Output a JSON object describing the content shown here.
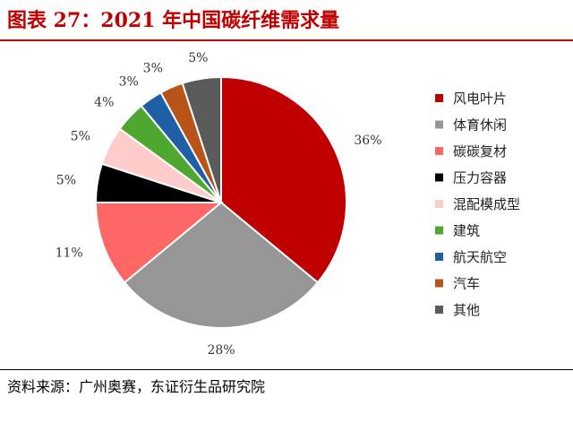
{
  "title": "图表 27：2021 年中国碳纤维需求量",
  "source": "资料来源：广州奥赛，东证衍生品研究院",
  "chart_data": {
    "type": "pie",
    "start_angle_deg": 0,
    "direction": "clockwise",
    "legend_position": "right",
    "slices": [
      {
        "name": "风电叶片",
        "value": 36,
        "label": "36%",
        "color": "#c00000"
      },
      {
        "name": "体育休闲",
        "value": 28,
        "label": "28%",
        "color": "#969696"
      },
      {
        "name": "碳碳复材",
        "value": 11,
        "label": "11%",
        "color": "#ff6666"
      },
      {
        "name": "压力容器",
        "value": 5,
        "label": "5%",
        "color": "#000000"
      },
      {
        "name": "混配模成型",
        "value": 5,
        "label": "5%",
        "color": "#ffcccc"
      },
      {
        "name": "建筑",
        "value": 4,
        "label": "4%",
        "color": "#4ea72e"
      },
      {
        "name": "航天航空",
        "value": 3,
        "label": "3%",
        "color": "#1f5fa6"
      },
      {
        "name": "汽车",
        "value": 3,
        "label": "3%",
        "color": "#b85418"
      },
      {
        "name": "其他",
        "value": 5,
        "label": "5%",
        "color": "#5a5a5a"
      }
    ]
  }
}
